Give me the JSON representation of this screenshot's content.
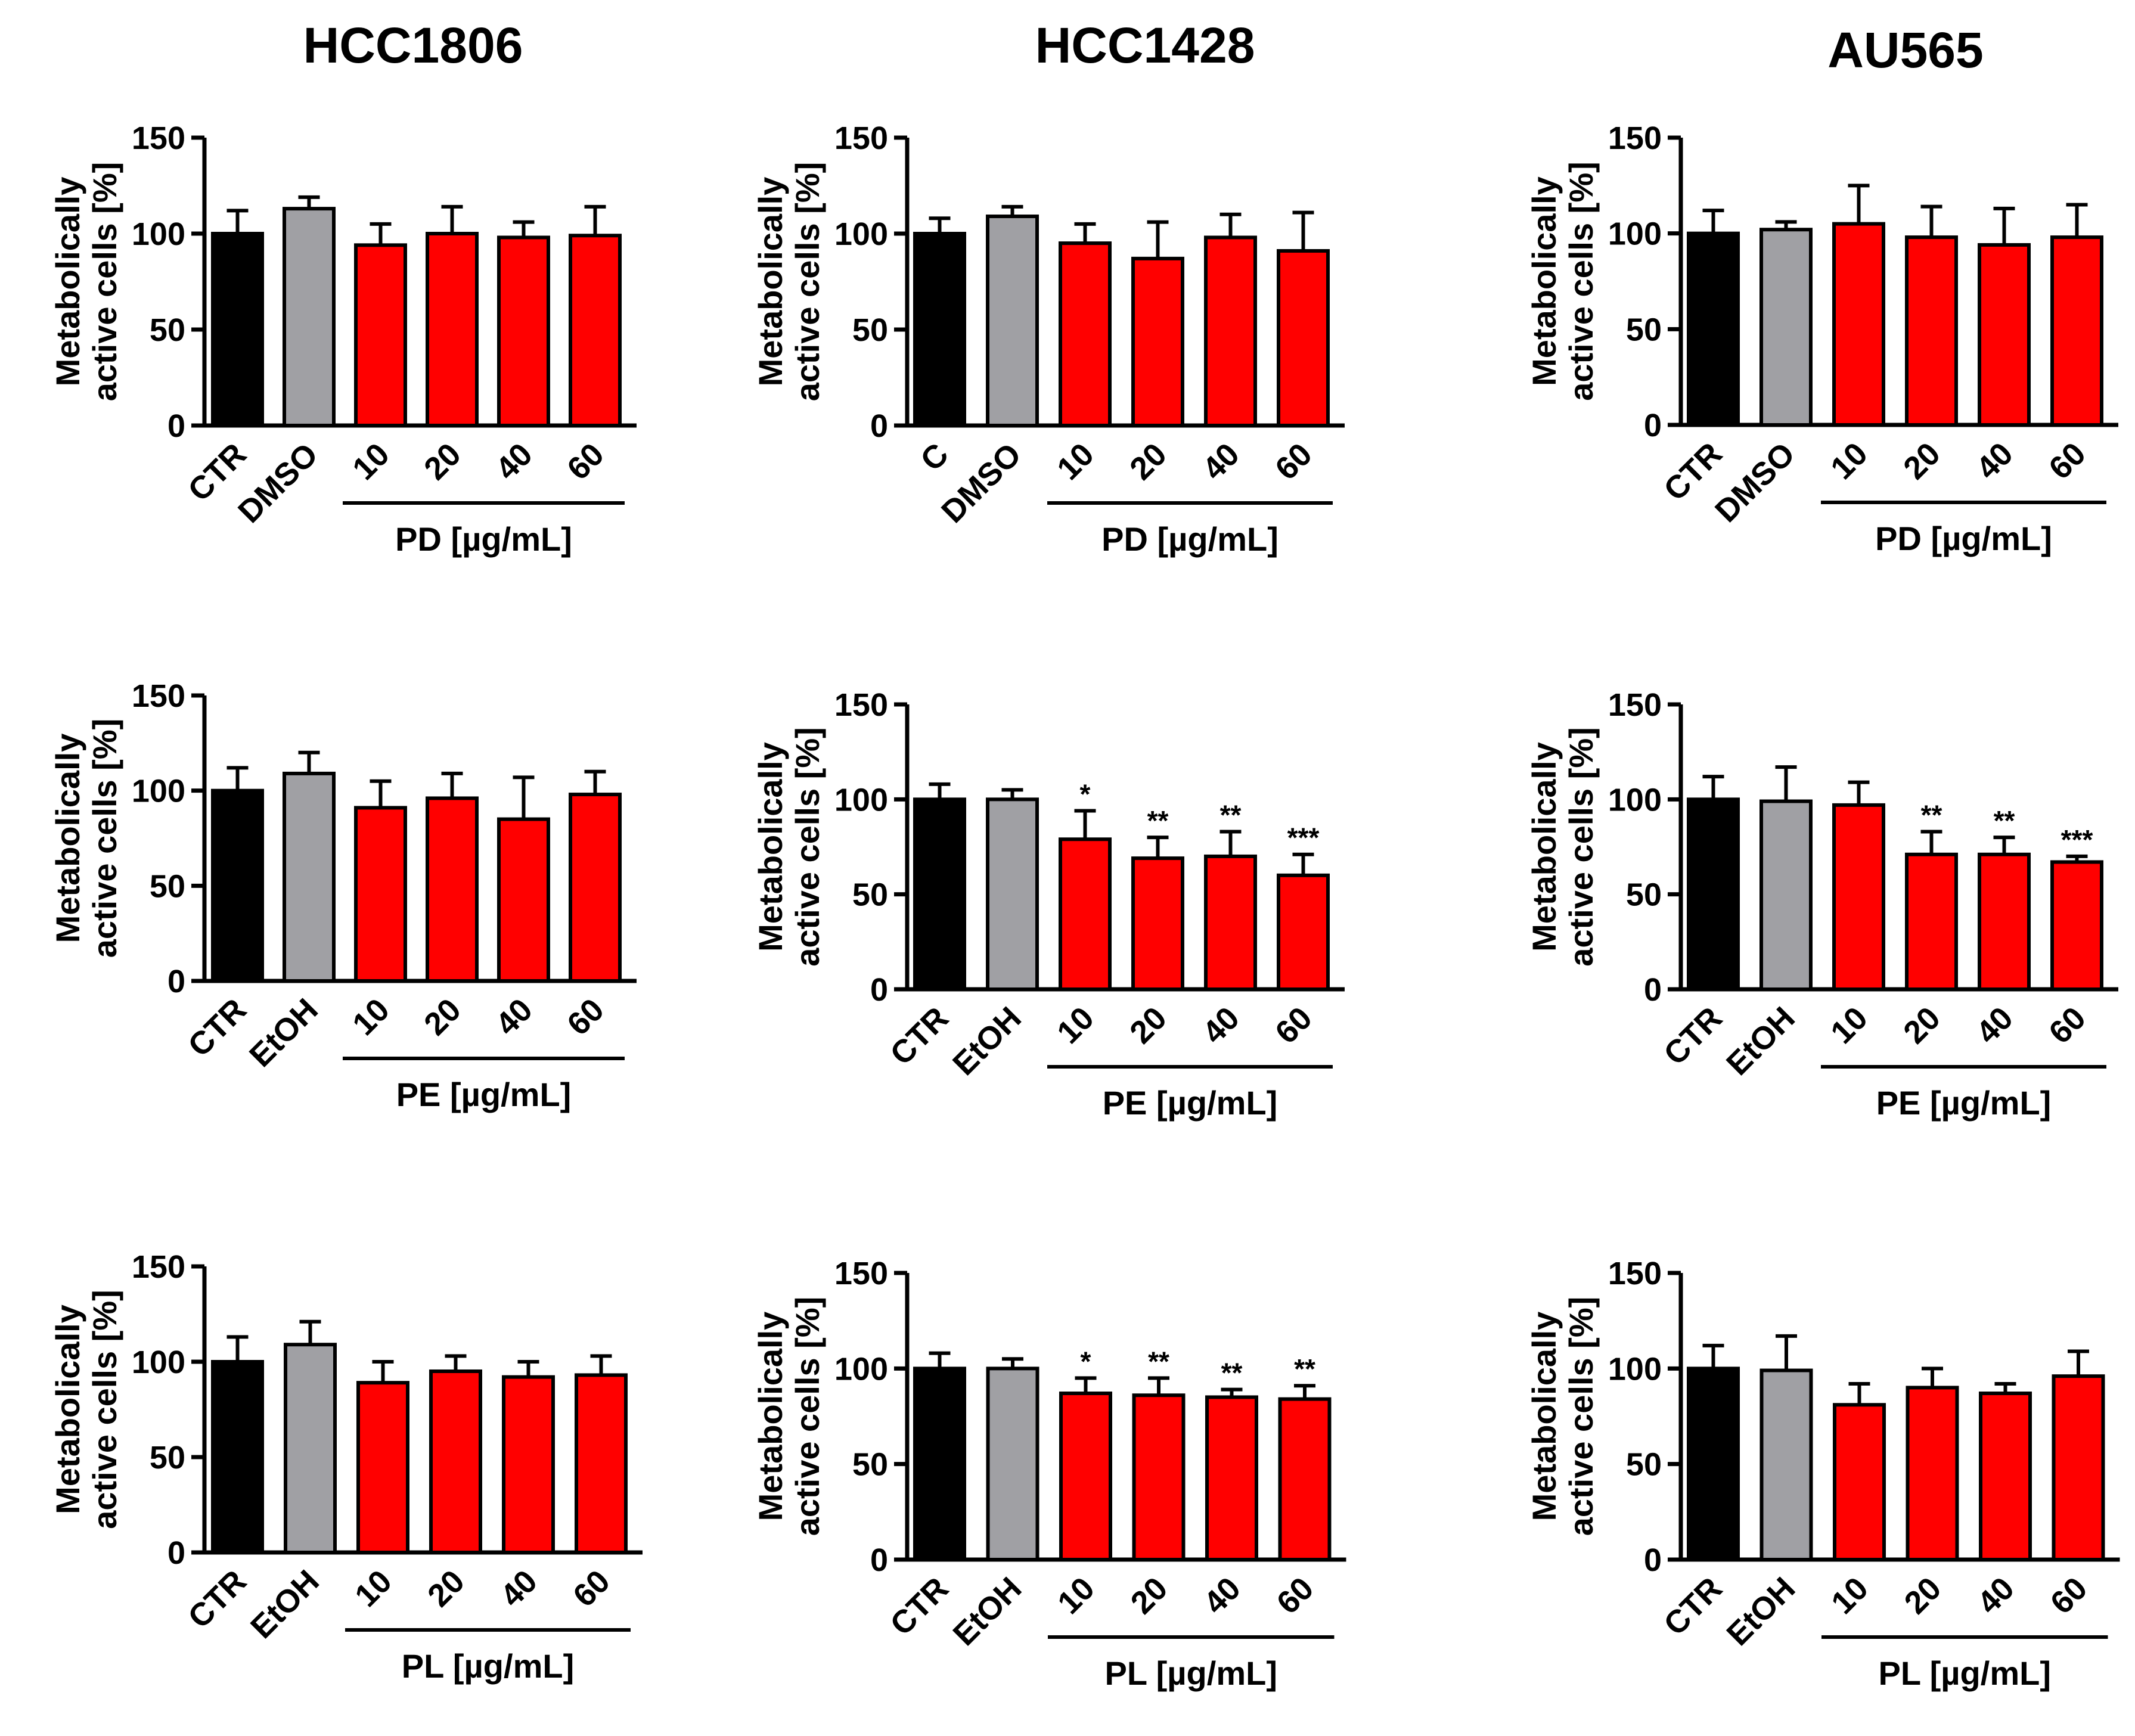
{
  "column_titles": [
    "HCC1806",
    "HCC1428",
    "AU565"
  ],
  "colors": {
    "control": "#000000",
    "vehicle": "#a0a0a4",
    "treatment": "#ff0000",
    "axis": "#000000"
  },
  "chart_data": [
    {
      "id": "r0c0",
      "type": "bar",
      "column_title": "HCC1806",
      "ylabel": [
        "Metabolically",
        "active cells [%]"
      ],
      "ylim": [
        0,
        150
      ],
      "yticks": [
        0,
        50,
        100,
        150
      ],
      "categories": [
        "CTR",
        "DMSO",
        "10",
        "20",
        "40",
        "60"
      ],
      "group_label": "PD [µg/mL]",
      "values": [
        100,
        113,
        94,
        100,
        98,
        99
      ],
      "errors": [
        12,
        6,
        11,
        14,
        8,
        15
      ],
      "significance": [
        "",
        "",
        "",
        "",
        "",
        ""
      ]
    },
    {
      "id": "r0c1",
      "type": "bar",
      "column_title": "HCC1428",
      "ylabel": [
        "Metabolically",
        "active cells [%]"
      ],
      "ylim": [
        0,
        150
      ],
      "yticks": [
        0,
        50,
        100,
        150
      ],
      "categories": [
        "C",
        "DMSO",
        "10",
        "20",
        "40",
        "60"
      ],
      "group_label": "PD [µg/mL]",
      "values": [
        100,
        109,
        95,
        87,
        98,
        91
      ],
      "errors": [
        8,
        5,
        10,
        19,
        12,
        20
      ],
      "significance": [
        "",
        "",
        "",
        "",
        "",
        ""
      ]
    },
    {
      "id": "r0c2",
      "type": "bar",
      "column_title": "AU565",
      "ylabel": [
        "Metabolically",
        "active cells [%]"
      ],
      "ylim": [
        0,
        150
      ],
      "yticks": [
        0,
        50,
        100,
        150
      ],
      "categories": [
        "CTR",
        "DMSO",
        "10",
        "20",
        "40",
        "60"
      ],
      "group_label": "PD [µg/mL]",
      "values": [
        100,
        102,
        105,
        98,
        94,
        98
      ],
      "errors": [
        12,
        4,
        20,
        16,
        19,
        17
      ],
      "significance": [
        "",
        "",
        "",
        "",
        "",
        ""
      ]
    },
    {
      "id": "r1c0",
      "type": "bar",
      "ylabel": [
        "Metabolically",
        "active cells [%]"
      ],
      "ylim": [
        0,
        150
      ],
      "yticks": [
        0,
        50,
        100,
        150
      ],
      "categories": [
        "CTR",
        "EtOH",
        "10",
        "20",
        "40",
        "60"
      ],
      "group_label": "PE [µg/mL]",
      "values": [
        100,
        109,
        91,
        96,
        85,
        98
      ],
      "errors": [
        12,
        11,
        14,
        13,
        22,
        12
      ],
      "significance": [
        "",
        "",
        "",
        "",
        "",
        ""
      ]
    },
    {
      "id": "r1c1",
      "type": "bar",
      "ylabel": [
        "Metabolically",
        "active cells [%]"
      ],
      "ylim": [
        0,
        150
      ],
      "yticks": [
        0,
        50,
        100,
        150
      ],
      "categories": [
        "CTR",
        "EtOH",
        "10",
        "20",
        "40",
        "60"
      ],
      "group_label": "PE [µg/mL]",
      "values": [
        100,
        100,
        79,
        69,
        70,
        60
      ],
      "errors": [
        8,
        5,
        15,
        11,
        13,
        11
      ],
      "significance": [
        "",
        "",
        "*",
        "**",
        "**",
        "***"
      ]
    },
    {
      "id": "r1c2",
      "type": "bar",
      "ylabel": [
        "Metabolically",
        "active cells [%]"
      ],
      "ylim": [
        0,
        150
      ],
      "yticks": [
        0,
        50,
        100,
        150
      ],
      "categories": [
        "CTR",
        "EtOH",
        "10",
        "20",
        "40",
        "60"
      ],
      "group_label": "PE [µg/mL]",
      "values": [
        100,
        99,
        97,
        71,
        71,
        67
      ],
      "errors": [
        12,
        18,
        12,
        12,
        9,
        3
      ],
      "significance": [
        "",
        "",
        "",
        "**",
        "**",
        "***"
      ]
    },
    {
      "id": "r2c0",
      "type": "bar",
      "ylabel": [
        "Metabolically",
        "active cells [%]"
      ],
      "ylim": [
        0,
        150
      ],
      "yticks": [
        0,
        50,
        100,
        150
      ],
      "categories": [
        "CTR",
        "EtOH",
        "10",
        "20",
        "40",
        "60"
      ],
      "group_label": "PL [µg/mL]",
      "values": [
        100,
        109,
        89,
        95,
        92,
        93
      ],
      "errors": [
        13,
        12,
        11,
        8,
        8,
        10
      ],
      "significance": [
        "",
        "",
        "",
        "",
        "",
        ""
      ]
    },
    {
      "id": "r2c1",
      "type": "bar",
      "ylabel": [
        "Metabolically",
        "active cells [%]"
      ],
      "ylim": [
        0,
        150
      ],
      "yticks": [
        0,
        50,
        100,
        150
      ],
      "categories": [
        "CTR",
        "EtOH",
        "10",
        "20",
        "40",
        "60"
      ],
      "group_label": "PL [µg/mL]",
      "values": [
        100,
        100,
        87,
        86,
        85,
        84
      ],
      "errors": [
        8,
        5,
        8,
        9,
        4,
        7
      ],
      "significance": [
        "",
        "",
        "*",
        "**",
        "**",
        "**"
      ]
    },
    {
      "id": "r2c2",
      "type": "bar",
      "ylabel": [
        "Metabolically",
        "active cells [%]"
      ],
      "ylim": [
        0,
        150
      ],
      "yticks": [
        0,
        50,
        100,
        150
      ],
      "categories": [
        "CTR",
        "EtOH",
        "10",
        "20",
        "40",
        "60"
      ],
      "group_label": "PL [µg/mL]",
      "values": [
        100,
        99,
        81,
        90,
        87,
        96
      ],
      "errors": [
        12,
        18,
        11,
        10,
        5,
        13
      ],
      "significance": [
        "",
        "",
        "",
        "",
        "",
        ""
      ]
    }
  ]
}
